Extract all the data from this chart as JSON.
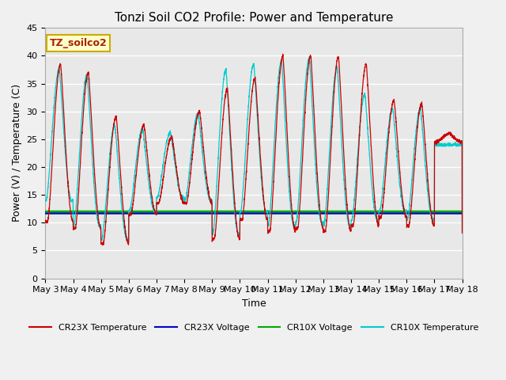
{
  "title": "Tonzi Soil CO2 Profile: Power and Temperature",
  "xlabel": "Time",
  "ylabel": "Power (V) / Temperature (C)",
  "ylim": [
    0,
    45
  ],
  "yticks": [
    0,
    5,
    10,
    15,
    20,
    25,
    30,
    35,
    40,
    45
  ],
  "x_labels": [
    "May 3",
    "May 4",
    "May 5",
    "May 6",
    "May 7",
    "May 8",
    "May 9",
    "May 10",
    "May 11",
    "May 12",
    "May 13",
    "May 14",
    "May 15",
    "May 16",
    "May 17",
    "May 18"
  ],
  "cr23x_voltage_value": 11.7,
  "cr10x_voltage_value": 12.0,
  "cr23x_color": "#cc0000",
  "cr23x_voltage_color": "#0000cc",
  "cr10x_voltage_color": "#00aa00",
  "cr10x_color": "#00cccc",
  "annotation_text": "TZ_soilco2",
  "annotation_bg": "#ffffcc",
  "annotation_border": "#ccaa00",
  "legend_entries": [
    "CR23X Temperature",
    "CR23X Voltage",
    "CR10X Voltage",
    "CR10X Temperature"
  ],
  "plot_bg": "#e8e8e8",
  "fig_bg": "#f0f0f0",
  "title_fontsize": 11,
  "axis_fontsize": 9,
  "tick_fontsize": 8,
  "cr23x_peaks": [
    38.5,
    37.0,
    29.0,
    27.5,
    25.5,
    30.0,
    34.0,
    36.0,
    40.0,
    40.0,
    39.8,
    38.5,
    32.0,
    31.5,
    26.0,
    25.0
  ],
  "cr23x_troughs": [
    10.2,
    9.0,
    6.2,
    11.5,
    13.5,
    13.5,
    7.0,
    10.5,
    8.5,
    9.0,
    8.5,
    9.5,
    11.0,
    9.5,
    24.5,
    8.0
  ],
  "cr10x_peaks": [
    37.5,
    36.5,
    27.5,
    26.8,
    26.2,
    29.5,
    37.5,
    38.5,
    39.0,
    39.5,
    38.0,
    33.0,
    30.5,
    30.5,
    24.0,
    23.5
  ],
  "cr10x_troughs": [
    14.0,
    9.5,
    7.0,
    12.0,
    14.5,
    14.0,
    8.0,
    12.0,
    9.5,
    10.0,
    9.5,
    10.5,
    12.0,
    10.5,
    24.0,
    9.0
  ]
}
